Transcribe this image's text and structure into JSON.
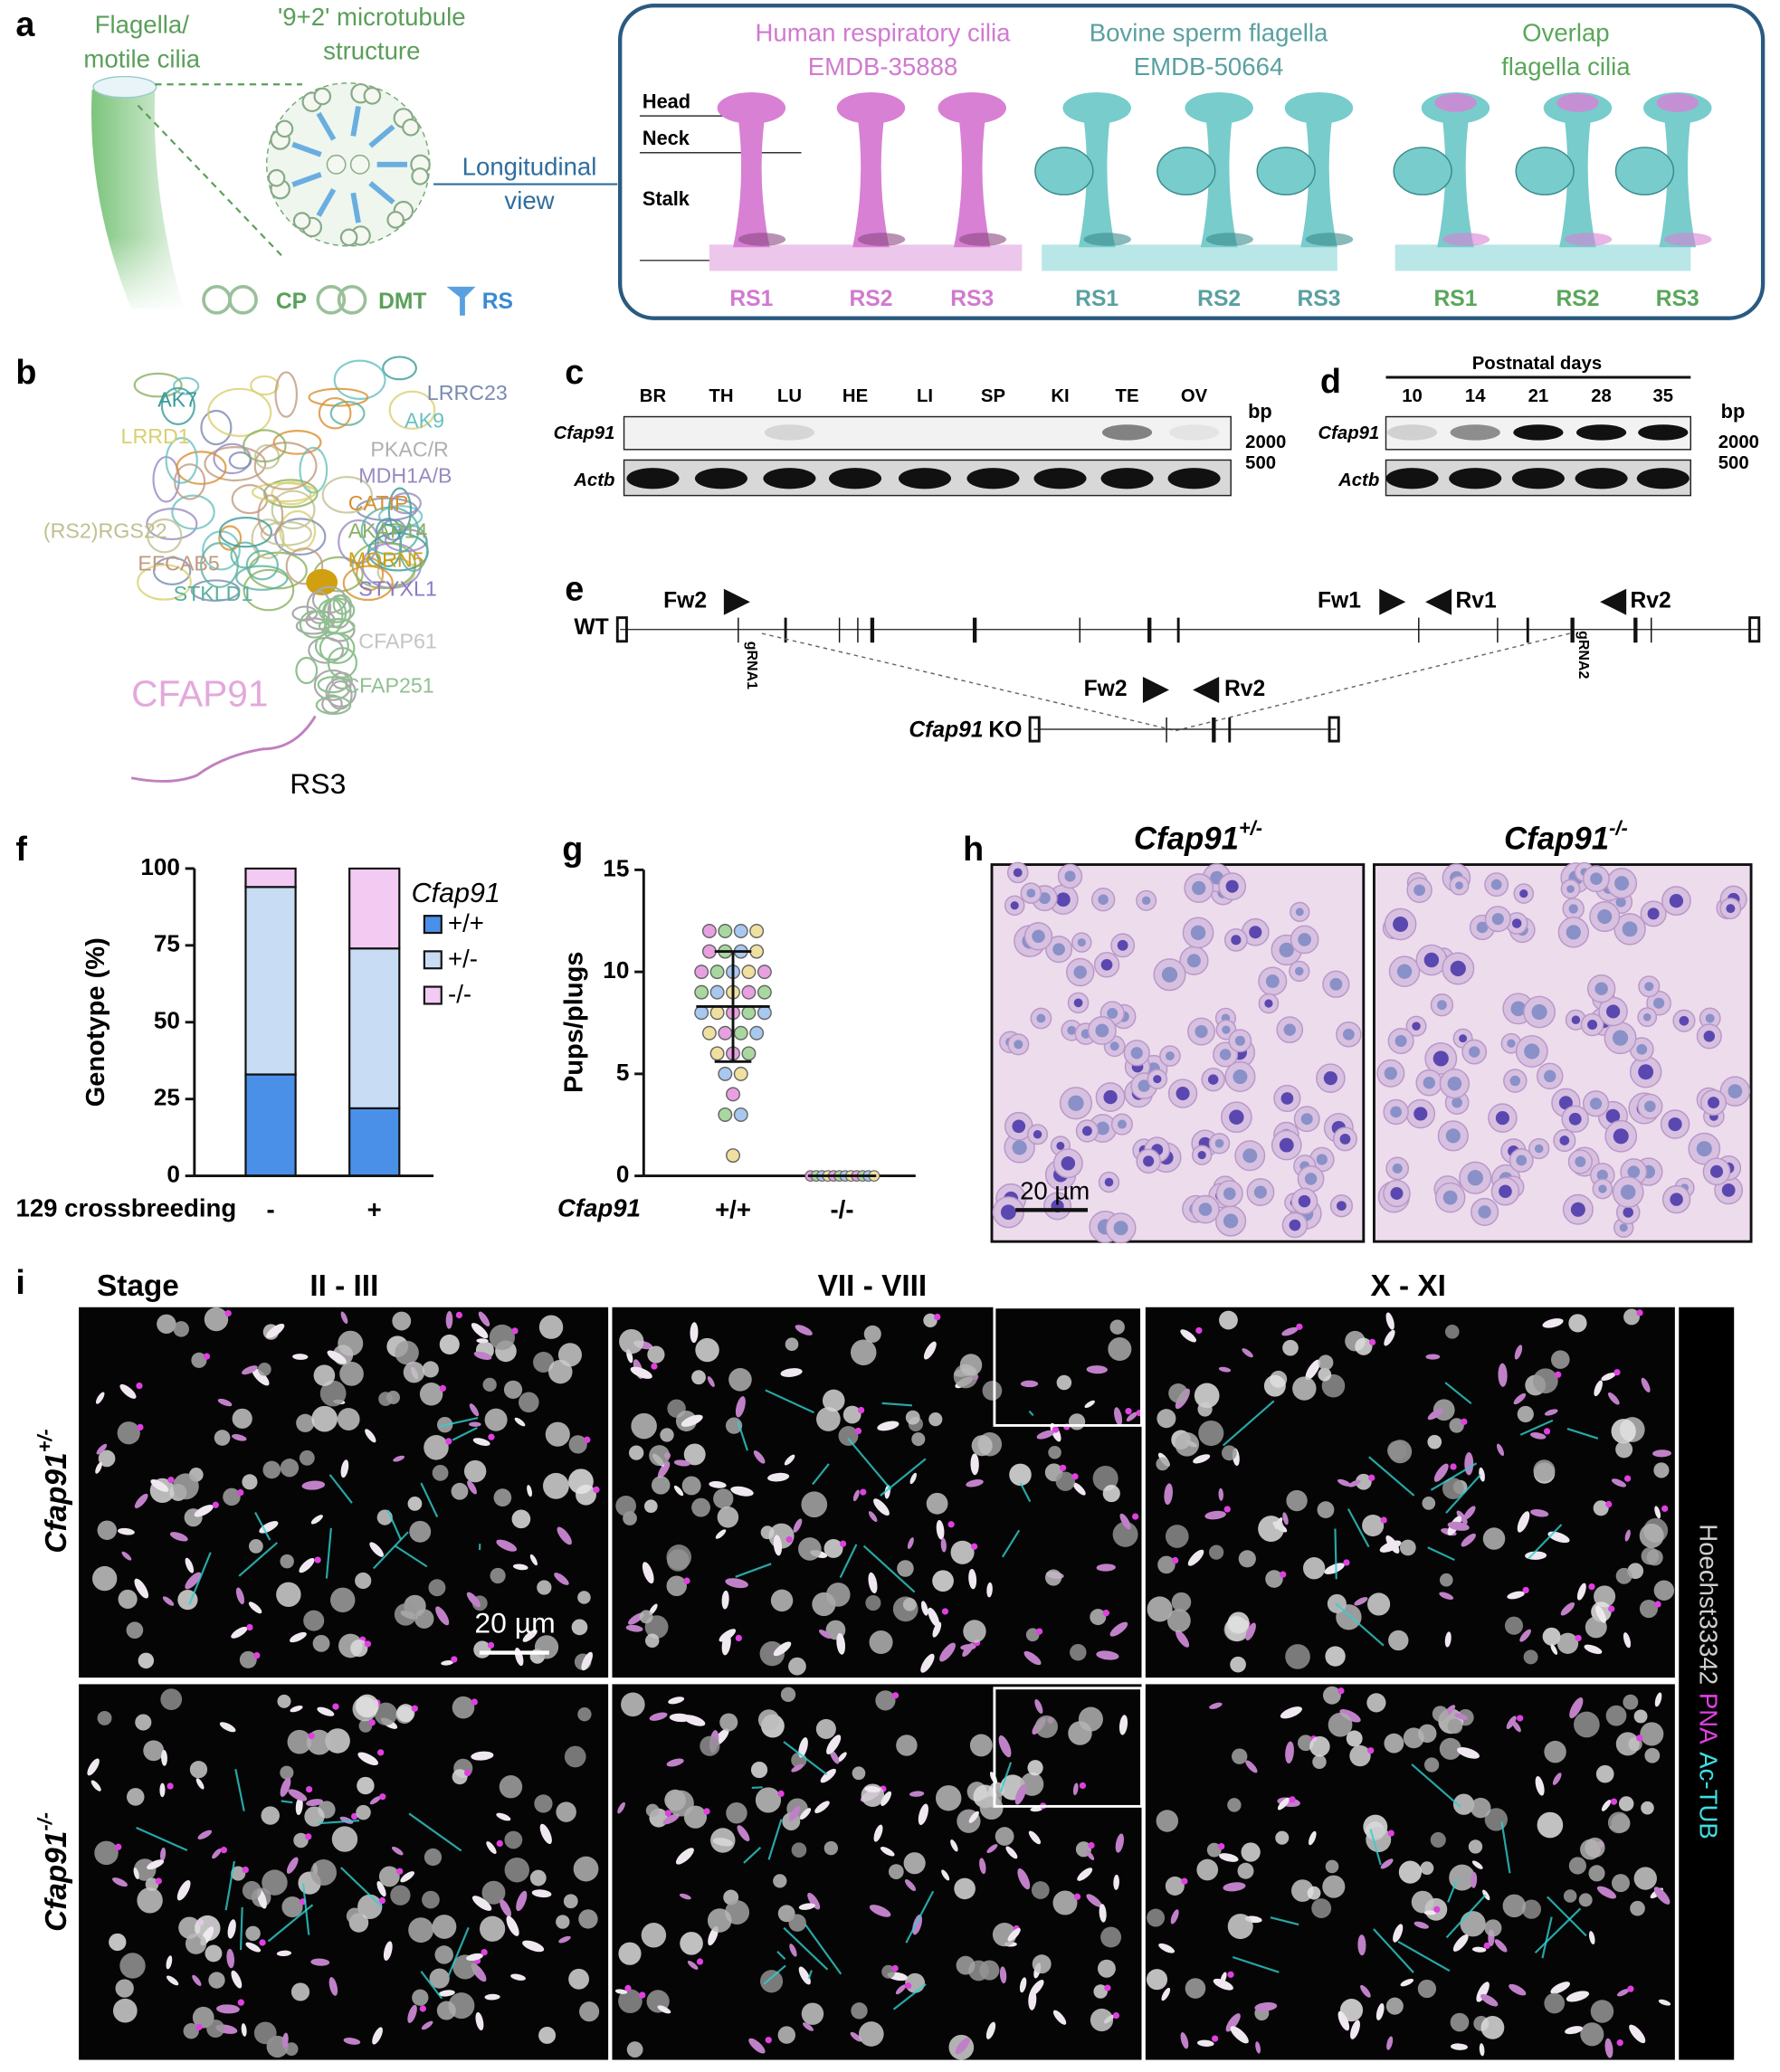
{
  "panel_a": {
    "label": "a",
    "flagella": [
      "Flagella/",
      "motile cilia"
    ],
    "structure": [
      "'9+2' microtubule",
      "structure"
    ],
    "longitudinal": [
      "Longitudinal",
      "view"
    ],
    "legend": [
      "CP",
      "DMT",
      "RS"
    ],
    "levels": [
      "Head",
      "Neck",
      "Stalk"
    ],
    "maps": [
      {
        "title": [
          "Human respiratory cilia",
          "EMDB-35888"
        ],
        "color": "#d07ad0",
        "rs": [
          "RS1",
          "RS2",
          "RS3"
        ]
      },
      {
        "title": [
          "Bovine sperm flagella",
          "EMDB-50664"
        ],
        "color": "#5aa0a0",
        "rs": [
          "RS1",
          "RS2",
          "RS3"
        ]
      },
      {
        "title": [
          "Overlap",
          "flagella cilia"
        ],
        "color": "#5aa65a",
        "rs": [
          "RS1",
          "RS2",
          "RS3"
        ]
      }
    ]
  },
  "panel_b": {
    "label": "b",
    "proteins": [
      {
        "name": "AK7",
        "color": "#3a9a9a"
      },
      {
        "name": "LRRD1",
        "color": "#d8d070"
      },
      {
        "name": "LRRC23",
        "color": "#7a8ab0"
      },
      {
        "name": "AK9",
        "color": "#6ac0c0"
      },
      {
        "name": "PKAC/R",
        "color": "#b0b0b0"
      },
      {
        "name": "MDH1A/B",
        "color": "#9a8ac0"
      },
      {
        "name": "CATIP",
        "color": "#d89030"
      },
      {
        "name": "AKAP14",
        "color": "#8ab060"
      },
      {
        "name": "MORN5",
        "color": "#d0a010"
      },
      {
        "name": "(RS2)RGS22",
        "color": "#c0c090"
      },
      {
        "name": "EFCAB5",
        "color": "#c09a80"
      },
      {
        "name": "STKLD1",
        "color": "#5ab0a0"
      },
      {
        "name": "STYXL1",
        "color": "#8a7ac0"
      },
      {
        "name": "CFAP61",
        "color": "#c4c4c4"
      },
      {
        "name": "CFAP251",
        "color": "#90c090"
      },
      {
        "name": "CFAP91",
        "color": "#e4a8dc"
      }
    ],
    "rs": "RS3"
  },
  "panel_c": {
    "label": "c",
    "lanes": [
      "BR",
      "TH",
      "LU",
      "HE",
      "LI",
      "SP",
      "KI",
      "TE",
      "OV"
    ],
    "rows": [
      "Cfap91",
      "Actb"
    ],
    "unit": "bp",
    "markers": [
      "2000",
      "500"
    ]
  },
  "panel_d": {
    "label": "d",
    "header": "Postnatal days",
    "lanes": [
      "10",
      "14",
      "21",
      "28",
      "35"
    ],
    "rows": [
      "Cfap91",
      "Actb"
    ],
    "unit": "bp",
    "markers": [
      "2000",
      "500"
    ]
  },
  "panel_e": {
    "label": "e",
    "wt": "WT",
    "wt_primers": [
      "Fw2",
      "Fw1",
      "Rv1",
      "Rv2"
    ],
    "grnas": [
      "gRNA1",
      "gRNA2"
    ],
    "ko_primers": [
      "Fw2",
      "Rv2"
    ],
    "ko": {
      "gene": "Cfap91",
      "suffix": "KO"
    }
  },
  "panel_f": {
    "label": "f"
  },
  "panel_g": {
    "label": "g"
  },
  "panel_h": {
    "label": "h",
    "titles": [
      {
        "gene": "Cfap91",
        "genotype": "+/-"
      },
      {
        "gene": "Cfap91",
        "genotype": "-/-"
      }
    ],
    "scale": "20 µm"
  },
  "panel_i": {
    "label": "i",
    "stage": "Stage",
    "stages": [
      "II - III",
      "VII - VIII",
      "X - XI"
    ],
    "rows": [
      {
        "gene": "Cfap91",
        "genotype": "+/-"
      },
      {
        "gene": "Cfap91",
        "genotype": "-/-"
      }
    ],
    "scale": "20 µm",
    "channels": [
      {
        "name": "Hoechst33342",
        "color": "#d0d0d0"
      },
      {
        "name": "PNA",
        "color": "#e040e0"
      },
      {
        "name": "Ac-TUB",
        "color": "#40dede"
      }
    ]
  },
  "chart_data": [
    {
      "type": "bar",
      "stacked": true,
      "categories": [
        "-",
        "+"
      ],
      "series": [
        {
          "name": "+/+",
          "color": "#4a90e8",
          "values": [
            33,
            22
          ]
        },
        {
          "name": "+/-",
          "color": "#c8dcf4",
          "values": [
            61,
            52
          ]
        },
        {
          "name": "-/-",
          "color": "#f2caf2",
          "values": [
            6,
            26
          ]
        }
      ],
      "ylim": [
        0,
        100
      ],
      "yticks": [
        0,
        25,
        50,
        75,
        100
      ],
      "ylabel": "Genotype (%)",
      "xlabel": "129 crossbreeding",
      "legend_title": "Cfap91"
    },
    {
      "type": "scatter",
      "categories": [
        "+/+",
        "-/-"
      ],
      "groups": [
        [
          12,
          12,
          12,
          12,
          11,
          11,
          11,
          11,
          10,
          10,
          10,
          10,
          10,
          9,
          9,
          9,
          9,
          9,
          8,
          8,
          8,
          8,
          8,
          7,
          7,
          7,
          7,
          6,
          6,
          6,
          5,
          5,
          4,
          3,
          3,
          1
        ],
        [
          0,
          0,
          0,
          0,
          0,
          0,
          0,
          0,
          0,
          0,
          0,
          0
        ]
      ],
      "mean": [
        8.3,
        0
      ],
      "sd": [
        2.7,
        0
      ],
      "point_colors": [
        "#e8a0e0",
        "#a8d8a0",
        "#a8c8f0",
        "#f0e0a0"
      ],
      "ylim": [
        0,
        15
      ],
      "yticks": [
        0,
        5,
        10,
        15
      ],
      "ylabel": "Pups/plugs",
      "xlabel": "Cfap91"
    }
  ]
}
